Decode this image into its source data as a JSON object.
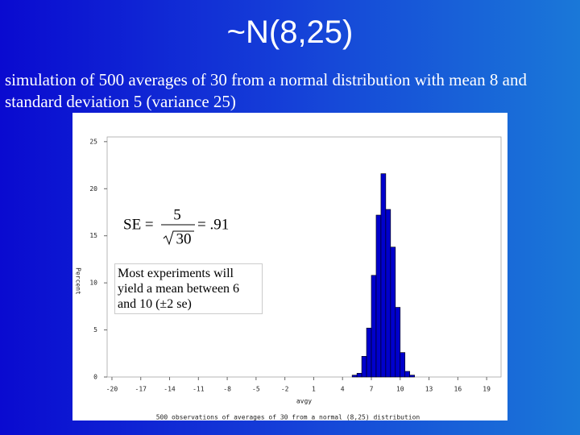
{
  "title": "~N(8,25)",
  "subtitle": "simulation of 500 averages of 30 from a normal distribution with mean 8 and standard deviation 5 (variance 25)",
  "chart_data": {
    "type": "histogram",
    "bins": [
      5,
      5.5,
      6,
      6.5,
      7,
      7.5,
      8,
      8.5,
      9,
      9.5,
      10,
      10.5,
      11,
      11.5
    ],
    "values": [
      0.2,
      0.4,
      2.2,
      5.2,
      10.8,
      17.2,
      21.6,
      17.8,
      13.8,
      7.4,
      2.6,
      0.6,
      0.2
    ],
    "color": "#0000cc",
    "xlim": [
      -20.5,
      20.5
    ],
    "ylim": [
      0,
      25.5
    ],
    "xticks": [
      -20,
      -17,
      -14,
      -11,
      -8,
      -5,
      -2,
      1,
      4,
      7,
      10,
      13,
      16,
      19
    ],
    "yticks": [
      0,
      5,
      10,
      15,
      20,
      25
    ],
    "xlabel": "avgy",
    "ylabel": "Percent",
    "caption": "500 observations of averages of 30 from a normal (8,25) distribution",
    "formula": {
      "lhs": "SE =",
      "numerator": "5",
      "denominator": "30",
      "rhs": "= .91"
    },
    "note": "Most experiments will yield a mean between 6 and 10 (±2 se)"
  }
}
